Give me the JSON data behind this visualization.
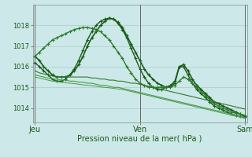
{
  "background_color": "#cce8e8",
  "grid_color": "#aacccc",
  "line_color_dark": "#1a5c1a",
  "line_color_mid": "#2d7a2d",
  "line_color_light": "#4a9a4a",
  "xlabel": "Pression niveau de la mer( hPa )",
  "xtick_labels": [
    "Jeu",
    "Ven",
    "Sam"
  ],
  "xtick_positions": [
    0,
    24,
    48
  ],
  "ylim": [
    1013.3,
    1019.0
  ],
  "yticks": [
    1014,
    1015,
    1016,
    1017,
    1018
  ],
  "series": [
    {
      "y": [
        1016.5,
        1016.3,
        1016.0,
        1015.8,
        1015.6,
        1015.5,
        1015.5,
        1015.5,
        1015.6,
        1015.8,
        1016.1,
        1016.5,
        1017.0,
        1017.4,
        1017.7,
        1018.0,
        1018.2,
        1018.35,
        1018.3,
        1018.15,
        1017.9,
        1017.5,
        1017.1,
        1016.7,
        1016.3,
        1015.9,
        1015.6,
        1015.4,
        1015.2,
        1015.1,
        1015.0,
        1015.05,
        1015.2,
        1016.0,
        1016.1,
        1015.8,
        1015.4,
        1015.1,
        1014.9,
        1014.7,
        1014.5,
        1014.3,
        1014.2,
        1014.1,
        1014.0,
        1013.9,
        1013.8,
        1013.7,
        1013.6
      ],
      "color": "#1a5c1a",
      "lw": 1.2,
      "marker": true
    },
    {
      "y": [
        1016.2,
        1016.0,
        1015.8,
        1015.6,
        1015.4,
        1015.3,
        1015.3,
        1015.4,
        1015.6,
        1015.9,
        1016.3,
        1016.8,
        1017.3,
        1017.7,
        1018.0,
        1018.2,
        1018.3,
        1018.35,
        1018.3,
        1018.1,
        1017.8,
        1017.4,
        1016.9,
        1016.4,
        1015.9,
        1015.5,
        1015.2,
        1015.0,
        1014.9,
        1014.9,
        1015.0,
        1015.1,
        1015.3,
        1016.0,
        1016.0,
        1015.6,
        1015.2,
        1014.9,
        1014.7,
        1014.5,
        1014.3,
        1014.1,
        1014.0,
        1013.9,
        1013.8,
        1013.7,
        1013.65,
        1013.6,
        1013.55
      ],
      "color": "#1a5c1a",
      "lw": 1.0,
      "marker": true
    },
    {
      "y": [
        1016.5,
        1016.7,
        1016.9,
        1017.1,
        1017.3,
        1017.4,
        1017.5,
        1017.6,
        1017.7,
        1017.8,
        1017.85,
        1017.9,
        1017.9,
        1017.85,
        1017.8,
        1017.7,
        1017.5,
        1017.3,
        1017.0,
        1016.7,
        1016.4,
        1016.0,
        1015.7,
        1015.4,
        1015.2,
        1015.1,
        1015.0,
        1015.0,
        1015.0,
        1015.0,
        1015.0,
        1015.0,
        1015.1,
        1015.3,
        1015.5,
        1015.4,
        1015.2,
        1015.0,
        1014.8,
        1014.6,
        1014.4,
        1014.2,
        1014.1,
        1014.0,
        1013.9,
        1013.8,
        1013.75,
        1013.7,
        1013.65
      ],
      "color": "#2d7a2d",
      "lw": 1.0,
      "marker": true
    },
    {
      "y": [
        1015.8,
        1015.7,
        1015.65,
        1015.6,
        1015.55,
        1015.5,
        1015.5,
        1015.5,
        1015.5,
        1015.5,
        1015.5,
        1015.5,
        1015.5,
        1015.45,
        1015.45,
        1015.4,
        1015.4,
        1015.35,
        1015.35,
        1015.3,
        1015.3,
        1015.25,
        1015.2,
        1015.2,
        1015.15,
        1015.1,
        1015.05,
        1015.0,
        1014.95,
        1014.9,
        1014.85,
        1014.8,
        1014.75,
        1014.7,
        1014.65,
        1014.6,
        1014.55,
        1014.5,
        1014.45,
        1014.4,
        1014.35,
        1014.3,
        1014.25,
        1014.2,
        1014.15,
        1014.1,
        1014.05,
        1014.0,
        1013.95
      ],
      "color": "#2d7a2d",
      "lw": 0.8,
      "marker": false
    },
    {
      "y": [
        1015.6,
        1015.55,
        1015.5,
        1015.45,
        1015.4,
        1015.4,
        1015.35,
        1015.35,
        1015.3,
        1015.3,
        1015.25,
        1015.25,
        1015.2,
        1015.2,
        1015.15,
        1015.1,
        1015.1,
        1015.05,
        1015.0,
        1015.0,
        1014.95,
        1014.9,
        1014.85,
        1014.8,
        1014.75,
        1014.7,
        1014.65,
        1014.6,
        1014.55,
        1014.5,
        1014.45,
        1014.4,
        1014.35,
        1014.3,
        1014.25,
        1014.2,
        1014.15,
        1014.1,
        1014.05,
        1014.0,
        1013.95,
        1013.9,
        1013.85,
        1013.8,
        1013.75,
        1013.7,
        1013.65,
        1013.6,
        1013.55
      ],
      "color": "#4a9a4a",
      "lw": 0.8,
      "marker": false
    },
    {
      "y": [
        1015.5,
        1015.45,
        1015.4,
        1015.35,
        1015.3,
        1015.28,
        1015.25,
        1015.22,
        1015.2,
        1015.18,
        1015.15,
        1015.12,
        1015.1,
        1015.08,
        1015.05,
        1015.02,
        1015.0,
        1014.98,
        1014.95,
        1014.92,
        1014.9,
        1014.85,
        1014.8,
        1014.75,
        1014.7,
        1014.65,
        1014.6,
        1014.55,
        1014.5,
        1014.45,
        1014.4,
        1014.35,
        1014.3,
        1014.25,
        1014.2,
        1014.15,
        1014.1,
        1014.05,
        1014.0,
        1013.95,
        1013.9,
        1013.85,
        1013.8,
        1013.75,
        1013.7,
        1013.65,
        1013.6,
        1013.55,
        1013.5
      ],
      "color": "#4a9a4a",
      "lw": 0.7,
      "marker": false
    }
  ],
  "marker_style": "+",
  "marker_size": 3.5,
  "marker_lw": 0.8
}
